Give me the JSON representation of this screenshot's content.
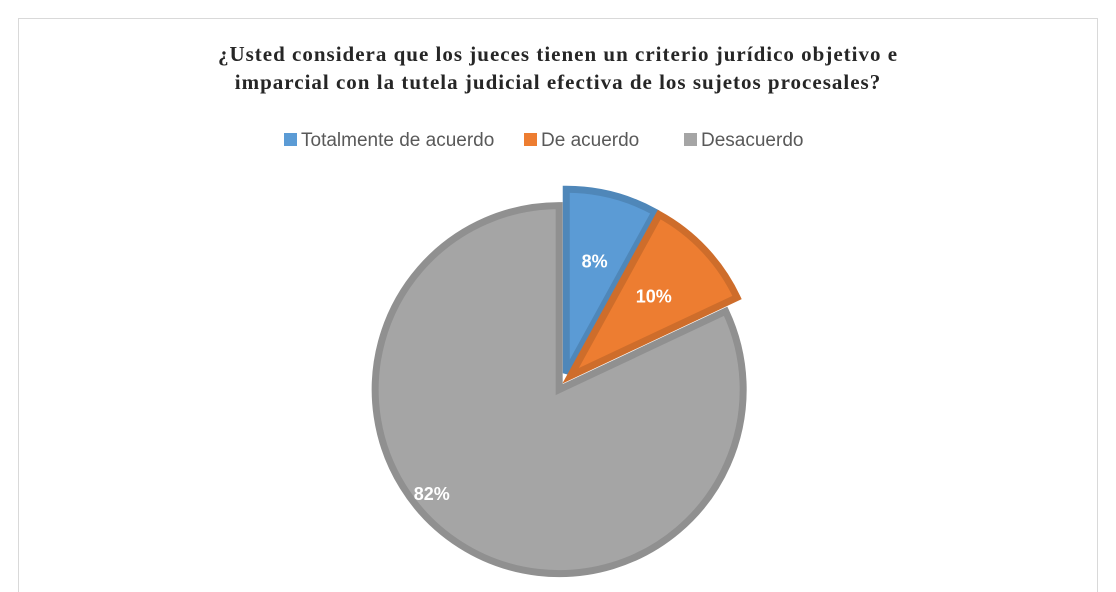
{
  "chart_data": {
    "type": "pie",
    "title": [
      "¿Usted considera que los jueces tienen un criterio jurídico objetivo e",
      "imparcial con la tutela judicial efectiva de los sujetos procesales?"
    ],
    "categories": [
      "Totalmente de acuerdo",
      "De acuerdo",
      "Desacuerdo"
    ],
    "values": [
      8,
      10,
      82
    ],
    "value_labels": [
      "8%",
      "10%",
      "82%"
    ],
    "colors": [
      "#5b9bd5",
      "#ed7d31",
      "#a5a5a5"
    ],
    "legend": "top"
  }
}
